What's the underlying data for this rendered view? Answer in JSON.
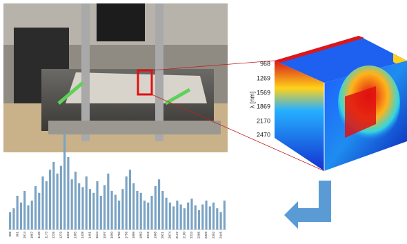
{
  "chart_data": {
    "type": "bar",
    "color": "#7aa3c4",
    "categories": [
      "908",
      null,
      "961",
      null,
      "1014",
      null,
      "1067",
      null,
      "1120",
      null,
      "1173",
      null,
      "1226",
      null,
      "1279",
      null,
      "1332",
      null,
      "1385",
      null,
      "1438",
      null,
      "1491",
      null,
      "1544",
      null,
      "1597",
      null,
      "1650",
      null,
      "1703",
      null,
      "1756",
      null,
      "1809",
      null,
      "1862",
      null,
      "1915",
      null,
      "1968",
      null,
      "2021",
      null,
      "2074",
      null,
      "2127",
      null,
      "2180",
      null,
      "2233",
      null,
      "2286",
      null,
      "2339",
      null,
      "2392",
      null,
      "2445",
      null
    ],
    "values": [
      18,
      22,
      35,
      28,
      40,
      25,
      30,
      45,
      38,
      55,
      50,
      62,
      70,
      58,
      66,
      100,
      75,
      52,
      60,
      48,
      44,
      55,
      42,
      38,
      50,
      35,
      46,
      58,
      40,
      36,
      30,
      42,
      55,
      62,
      48,
      40,
      38,
      30,
      28,
      35,
      45,
      52,
      40,
      33,
      28,
      24,
      30,
      26,
      22,
      28,
      32,
      25,
      20,
      26,
      30,
      24,
      28,
      22,
      18,
      30
    ],
    "ylim": [
      0,
      100
    ]
  },
  "hypercube": {
    "axis_label": "λ [nm]",
    "ticks": [
      "968",
      "1269",
      "1569",
      "1869",
      "2170",
      "2470"
    ]
  }
}
